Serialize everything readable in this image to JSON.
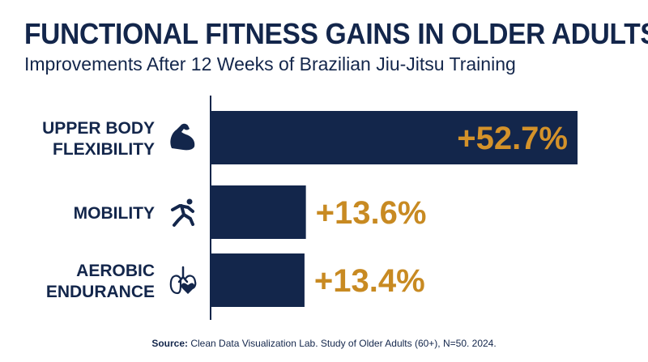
{
  "header": {
    "title": "FUNCTIONAL FITNESS GAINS IN OLDER ADULTS",
    "subtitle": "Improvements After 12 Weeks of Brazilian Jiu-Jitsu Training"
  },
  "footer": {
    "source_label": "Source:",
    "source_text": "Clean Data Visualization Lab. Study of Older Adults (60+), N=50. 2024."
  },
  "colors": {
    "bar": "#13264b",
    "value_inside": "#d4922a",
    "value_outside": "#c88a22",
    "text": "#13264b"
  },
  "chart_data": {
    "type": "bar",
    "orientation": "horizontal",
    "categories": [
      [
        "UPPER BODY",
        "FLEXIBILITY"
      ],
      [
        "MOBILITY"
      ],
      [
        "AEROBIC",
        "ENDURANCE"
      ]
    ],
    "values": [
      52.7,
      13.6,
      13.4
    ],
    "value_labels": [
      "+52.7%",
      "+13.6%",
      "+13.4%"
    ],
    "icons": [
      "flexed-bicep-icon",
      "running-person-icon",
      "lungs-heart-icon"
    ],
    "unit": "%",
    "xlim": [
      0,
      52.7
    ],
    "grid": false
  }
}
